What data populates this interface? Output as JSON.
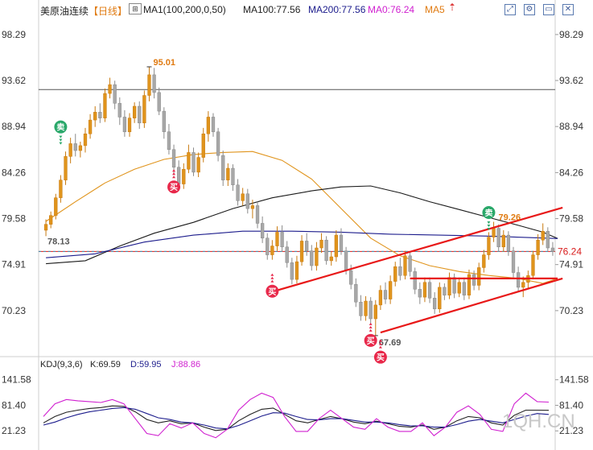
{
  "header": {
    "symbol": "美原油连续",
    "period": "【日线】",
    "ma_label": "MA1(100,200,0,50)",
    "ma100": "MA100:77.56",
    "ma200": "MA200:77.56",
    "ma0": "MA0:76.24",
    "ma5": "MA5",
    "colors": {
      "symbol": "#222222",
      "period": "#e07a10",
      "ma100": "#222222",
      "ma200": "#1c1c8c",
      "ma0": "#d020d0",
      "ma5": "#e07a10"
    },
    "tools": [
      "expand-icon",
      "gear-icon",
      "window-icon",
      "close-icon"
    ]
  },
  "kdj_header": {
    "name": "KDJ(9,3,6)",
    "k": "K:69.59",
    "d": "D:59.95",
    "j": "J:88.86",
    "colors": {
      "k": "#222222",
      "d": "#1c1c8c",
      "j": "#d020d0"
    }
  },
  "watermark": "1QH.CN",
  "chart_data": [
    {
      "type": "candlestick",
      "panel": "price",
      "yticks": [
        "98.29",
        "93.62",
        "88.94",
        "84.26",
        "79.58",
        "74.91",
        "70.23"
      ],
      "ylim": [
        65.8,
        100.0
      ],
      "candles": [
        [
          78.4,
          79.5,
          77.8,
          79.0
        ],
        [
          79.0,
          80.3,
          78.6,
          79.9
        ],
        [
          79.9,
          82.1,
          79.5,
          81.7
        ],
        [
          81.7,
          84.0,
          81.2,
          83.5
        ],
        [
          83.5,
          86.4,
          83.0,
          85.9
        ],
        [
          85.9,
          87.8,
          85.2,
          87.2
        ],
        [
          87.2,
          88.2,
          85.9,
          86.5
        ],
        [
          86.5,
          87.4,
          85.8,
          87.0
        ],
        [
          87.0,
          88.8,
          86.3,
          88.2
        ],
        [
          88.2,
          90.2,
          87.7,
          89.6
        ],
        [
          89.6,
          91.0,
          88.9,
          90.4
        ],
        [
          90.4,
          91.3,
          89.3,
          89.8
        ],
        [
          89.8,
          92.8,
          89.4,
          92.3
        ],
        [
          92.3,
          93.9,
          91.8,
          93.2
        ],
        [
          93.2,
          93.6,
          90.7,
          91.3
        ],
        [
          91.3,
          91.9,
          89.1,
          89.9
        ],
        [
          89.9,
          90.6,
          87.9,
          88.4
        ],
        [
          88.4,
          90.3,
          87.9,
          89.8
        ],
        [
          89.8,
          91.4,
          89.3,
          91.0
        ],
        [
          91.0,
          91.5,
          88.7,
          89.3
        ],
        [
          89.3,
          92.6,
          88.8,
          92.1
        ],
        [
          92.1,
          95.01,
          91.5,
          94.2
        ],
        [
          94.2,
          94.9,
          91.8,
          92.4
        ],
        [
          92.4,
          92.9,
          90.1,
          90.5
        ],
        [
          90.5,
          90.9,
          87.7,
          88.4
        ],
        [
          88.4,
          89.2,
          86.1,
          86.6
        ],
        [
          86.6,
          87.1,
          84.0,
          84.8
        ],
        [
          84.8,
          85.5,
          82.4,
          83.1
        ],
        [
          83.1,
          85.2,
          82.6,
          84.6
        ],
        [
          84.6,
          87.1,
          84.2,
          86.3
        ],
        [
          86.3,
          86.8,
          83.9,
          84.3
        ],
        [
          84.3,
          86.3,
          83.8,
          85.8
        ],
        [
          85.8,
          88.8,
          85.3,
          88.2
        ],
        [
          88.2,
          90.5,
          87.4,
          89.9
        ],
        [
          89.9,
          90.3,
          87.9,
          88.4
        ],
        [
          88.4,
          88.8,
          85.4,
          86.0
        ],
        [
          86.0,
          86.5,
          82.9,
          83.5
        ],
        [
          83.5,
          85.2,
          82.9,
          84.7
        ],
        [
          84.7,
          85.1,
          82.4,
          83.0
        ],
        [
          83.0,
          83.6,
          80.9,
          81.4
        ],
        [
          81.4,
          82.7,
          80.9,
          82.1
        ],
        [
          82.1,
          82.6,
          80.1,
          80.6
        ],
        [
          80.6,
          81.5,
          79.6,
          80.9
        ],
        [
          80.9,
          81.3,
          78.6,
          79.1
        ],
        [
          79.1,
          79.8,
          77.1,
          77.6
        ],
        [
          77.6,
          78.1,
          75.4,
          75.9
        ],
        [
          75.9,
          77.4,
          75.4,
          76.8
        ],
        [
          76.8,
          78.8,
          76.3,
          78.2
        ],
        [
          78.2,
          78.9,
          76.2,
          76.7
        ],
        [
          76.7,
          77.3,
          74.6,
          75.1
        ],
        [
          75.1,
          75.6,
          72.9,
          73.4
        ],
        [
          73.4,
          75.8,
          73.0,
          75.2
        ],
        [
          75.2,
          77.9,
          74.8,
          77.3
        ],
        [
          77.3,
          78.1,
          75.8,
          76.3
        ],
        [
          76.3,
          76.9,
          74.3,
          74.8
        ],
        [
          74.8,
          77.2,
          74.3,
          76.6
        ],
        [
          76.6,
          78.1,
          76.1,
          77.4
        ],
        [
          77.4,
          77.8,
          74.9,
          75.3
        ],
        [
          75.3,
          76.2,
          74.8,
          75.7
        ],
        [
          75.7,
          78.4,
          75.2,
          77.9
        ],
        [
          77.9,
          78.6,
          75.9,
          76.3
        ],
        [
          76.3,
          76.7,
          73.9,
          74.3
        ],
        [
          74.3,
          74.9,
          72.4,
          72.9
        ],
        [
          72.9,
          73.5,
          70.6,
          71.1
        ],
        [
          71.1,
          71.8,
          69.2,
          69.7
        ],
        [
          69.7,
          71.7,
          69.2,
          71.2
        ],
        [
          71.2,
          71.6,
          68.9,
          69.4
        ],
        [
          69.4,
          71.3,
          67.69,
          70.8
        ],
        [
          70.8,
          72.8,
          70.3,
          72.3
        ],
        [
          72.3,
          73.1,
          70.9,
          71.4
        ],
        [
          71.4,
          73.8,
          70.9,
          73.2
        ],
        [
          73.2,
          75.2,
          72.7,
          74.7
        ],
        [
          74.7,
          75.6,
          73.3,
          73.8
        ],
        [
          73.8,
          76.3,
          73.4,
          75.8
        ],
        [
          75.8,
          76.2,
          73.7,
          74.2
        ],
        [
          74.2,
          74.6,
          71.9,
          72.4
        ],
        [
          72.4,
          73.1,
          70.9,
          71.6
        ],
        [
          71.6,
          73.6,
          71.1,
          73.1
        ],
        [
          73.1,
          73.6,
          71.0,
          71.5
        ],
        [
          71.5,
          72.1,
          69.9,
          70.4
        ],
        [
          70.4,
          73.1,
          70.0,
          72.6
        ],
        [
          72.6,
          73.0,
          71.3,
          71.8
        ],
        [
          71.8,
          74.1,
          71.4,
          73.6
        ],
        [
          73.6,
          74.0,
          71.5,
          72.0
        ],
        [
          72.0,
          73.6,
          71.6,
          73.1
        ],
        [
          73.1,
          73.6,
          71.3,
          71.8
        ],
        [
          71.8,
          74.4,
          71.4,
          73.9
        ],
        [
          73.9,
          74.3,
          72.3,
          72.8
        ],
        [
          72.8,
          75.1,
          72.3,
          74.6
        ],
        [
          74.6,
          76.4,
          74.1,
          75.9
        ],
        [
          75.9,
          78.2,
          75.4,
          77.7
        ],
        [
          77.7,
          79.26,
          77.2,
          78.6
        ],
        [
          78.6,
          79.0,
          76.2,
          76.7
        ],
        [
          76.7,
          78.4,
          76.2,
          77.9
        ],
        [
          77.9,
          78.3,
          75.8,
          76.3
        ],
        [
          76.3,
          76.7,
          73.6,
          74.1
        ],
        [
          74.1,
          74.7,
          72.2,
          72.6
        ],
        [
          72.6,
          73.7,
          71.6,
          73.1
        ],
        [
          73.1,
          74.3,
          72.4,
          73.8
        ],
        [
          73.8,
          76.3,
          73.4,
          75.9
        ],
        [
          75.9,
          78.0,
          75.4,
          77.4
        ],
        [
          77.4,
          79.1,
          76.9,
          78.3
        ],
        [
          78.3,
          78.7,
          76.3,
          76.6
        ],
        [
          76.6,
          77.2,
          75.8,
          76.24
        ]
      ],
      "ma_long_black": [
        [
          0,
          75.0
        ],
        [
          8,
          75.3
        ],
        [
          15,
          76.8
        ],
        [
          22,
          78.1
        ],
        [
          30,
          79.2
        ],
        [
          38,
          80.6
        ],
        [
          46,
          81.7
        ],
        [
          54,
          82.4
        ],
        [
          60,
          82.8
        ],
        [
          66,
          82.9
        ],
        [
          72,
          82.2
        ],
        [
          78,
          81.3
        ],
        [
          84,
          80.5
        ],
        [
          90,
          79.7
        ],
        [
          96,
          78.9
        ],
        [
          101,
          78.2
        ],
        [
          104,
          77.56
        ]
      ],
      "ma_long_navy": [
        [
          0,
          75.6
        ],
        [
          10,
          76.0
        ],
        [
          20,
          77.2
        ],
        [
          30,
          77.9
        ],
        [
          40,
          78.3
        ],
        [
          50,
          78.3
        ],
        [
          60,
          78.2
        ],
        [
          70,
          78.0
        ],
        [
          80,
          77.9
        ],
        [
          90,
          77.8
        ],
        [
          104,
          77.56
        ]
      ],
      "ma_short_orange": [
        [
          0,
          79.3
        ],
        [
          6,
          81.3
        ],
        [
          12,
          83.2
        ],
        [
          18,
          84.6
        ],
        [
          24,
          85.6
        ],
        [
          30,
          86.1
        ],
        [
          36,
          86.3
        ],
        [
          42,
          86.4
        ],
        [
          48,
          85.5
        ],
        [
          54,
          83.6
        ],
        [
          60,
          80.6
        ],
        [
          66,
          77.6
        ],
        [
          72,
          75.8
        ],
        [
          78,
          74.8
        ],
        [
          84,
          74.2
        ],
        [
          90,
          73.8
        ],
        [
          96,
          73.5
        ],
        [
          101,
          73.0
        ],
        [
          104,
          73.5
        ]
      ],
      "horizontal_lines": [
        {
          "value": 92.7,
          "color": "#555555"
        },
        {
          "value": 76.24,
          "color": "#d81c1c"
        },
        {
          "value": 76.24,
          "color": "#3a8fb0",
          "dashed": true
        }
      ],
      "trendlines": [
        {
          "from": [
            45,
            72.0
          ],
          "to": [
            105,
            80.7
          ],
          "color": "#e81818"
        },
        {
          "from": [
            68,
            68.0
          ],
          "to": [
            105,
            73.5
          ],
          "color": "#e81818"
        },
        {
          "from": [
            74,
            73.5
          ],
          "to": [
            104,
            73.5
          ],
          "color": "#e81818"
        }
      ],
      "annotations": [
        {
          "text": "95.01",
          "at": [
            21,
            95.01
          ],
          "color": "#e07a10"
        },
        {
          "text": "78.13",
          "at": [
            0,
            78.13
          ],
          "color": "#555555"
        },
        {
          "text": "67.69",
          "at": [
            67,
            67.69
          ],
          "color": "#555555"
        },
        {
          "text": "79.26",
          "at": [
            91,
            79.26
          ],
          "color": "#e07a10"
        }
      ],
      "signals": [
        {
          "label": "卖",
          "kind": "sell",
          "index": 3,
          "value": 88.9
        },
        {
          "label": "买",
          "kind": "buy",
          "index": 26,
          "value": 82.8
        },
        {
          "label": "买",
          "kind": "buy",
          "index": 46,
          "value": 72.2
        },
        {
          "label": "买",
          "kind": "buy",
          "index": 66,
          "value": 67.2
        },
        {
          "label": "买",
          "kind": "buy",
          "index": 68,
          "value": 65.5
        },
        {
          "label": "卖",
          "kind": "sell",
          "index": 90,
          "value": 80.2
        }
      ],
      "last_price_label": "76.24",
      "last_price_color": "#d81c1c"
    },
    {
      "type": "line",
      "panel": "kdj",
      "yticks": [
        "141.58",
        "81.40",
        "21.23"
      ],
      "ylim": [
        -20,
        160
      ],
      "series": [
        {
          "name": "K",
          "color": "#222222",
          "values": [
            40,
            55,
            65,
            70,
            74,
            76,
            80,
            79,
            66,
            48,
            40,
            45,
            38,
            40,
            30,
            22,
            25,
            45,
            60,
            72,
            75,
            60,
            45,
            40,
            48,
            55,
            50,
            42,
            38,
            44,
            38,
            32,
            30,
            35,
            25,
            30,
            45,
            55,
            52,
            40,
            35,
            58,
            70,
            70,
            69.59
          ]
        },
        {
          "name": "D",
          "color": "#1c1c8c",
          "values": [
            35,
            42,
            52,
            60,
            66,
            70,
            74,
            76,
            72,
            62,
            52,
            48,
            42,
            40,
            35,
            28,
            26,
            34,
            45,
            56,
            64,
            63,
            55,
            48,
            47,
            50,
            50,
            46,
            42,
            42,
            40,
            36,
            33,
            33,
            30,
            30,
            36,
            44,
            48,
            44,
            40,
            48,
            56,
            62,
            59.95
          ]
        },
        {
          "name": "J",
          "color": "#d020d0",
          "values": [
            55,
            85,
            95,
            92,
            90,
            88,
            95,
            85,
            50,
            15,
            10,
            38,
            28,
            40,
            15,
            5,
            25,
            70,
            95,
            110,
            100,
            55,
            20,
            20,
            50,
            70,
            50,
            30,
            25,
            50,
            30,
            20,
            20,
            40,
            10,
            30,
            65,
            80,
            60,
            25,
            20,
            85,
            110,
            90,
            88.86
          ]
        }
      ]
    }
  ]
}
